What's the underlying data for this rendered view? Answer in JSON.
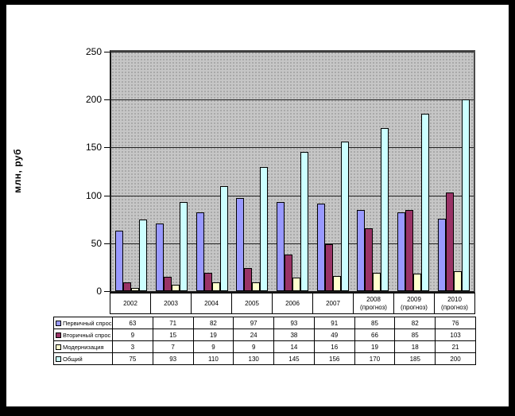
{
  "chart_data": {
    "type": "bar",
    "title": "",
    "xlabel": "",
    "ylabel": "млн, руб",
    "categories": [
      "2002",
      "2003",
      "2004",
      "2005",
      "2006",
      "2007",
      "2008\n(прогноз)",
      "2009\n(прогноз)",
      "2010\n(прогноз)"
    ],
    "series": [
      {
        "name": "Первичный спрос",
        "color": "#9999FF",
        "values": [
          63,
          71,
          82,
          97,
          93,
          91,
          85,
          82,
          76
        ]
      },
      {
        "name": "Вторичный спрос",
        "color": "#993366",
        "values": [
          9,
          15,
          19,
          24,
          38,
          49,
          66,
          85,
          103
        ]
      },
      {
        "name": "Модернизация",
        "color": "#FFFFCC",
        "values": [
          3,
          7,
          9,
          9,
          14,
          16,
          19,
          18,
          21
        ]
      },
      {
        "name": "Общий",
        "color": "#CCFFFF",
        "values": [
          75,
          93,
          110,
          130,
          145,
          156,
          170,
          185,
          200
        ]
      }
    ],
    "ylim": [
      0,
      250
    ],
    "yticks": [
      0,
      50,
      100,
      150,
      200,
      250
    ],
    "grid": true,
    "plot_bg": "#C0C0C0",
    "legend_position": "data-table-left",
    "has_data_table": true
  }
}
